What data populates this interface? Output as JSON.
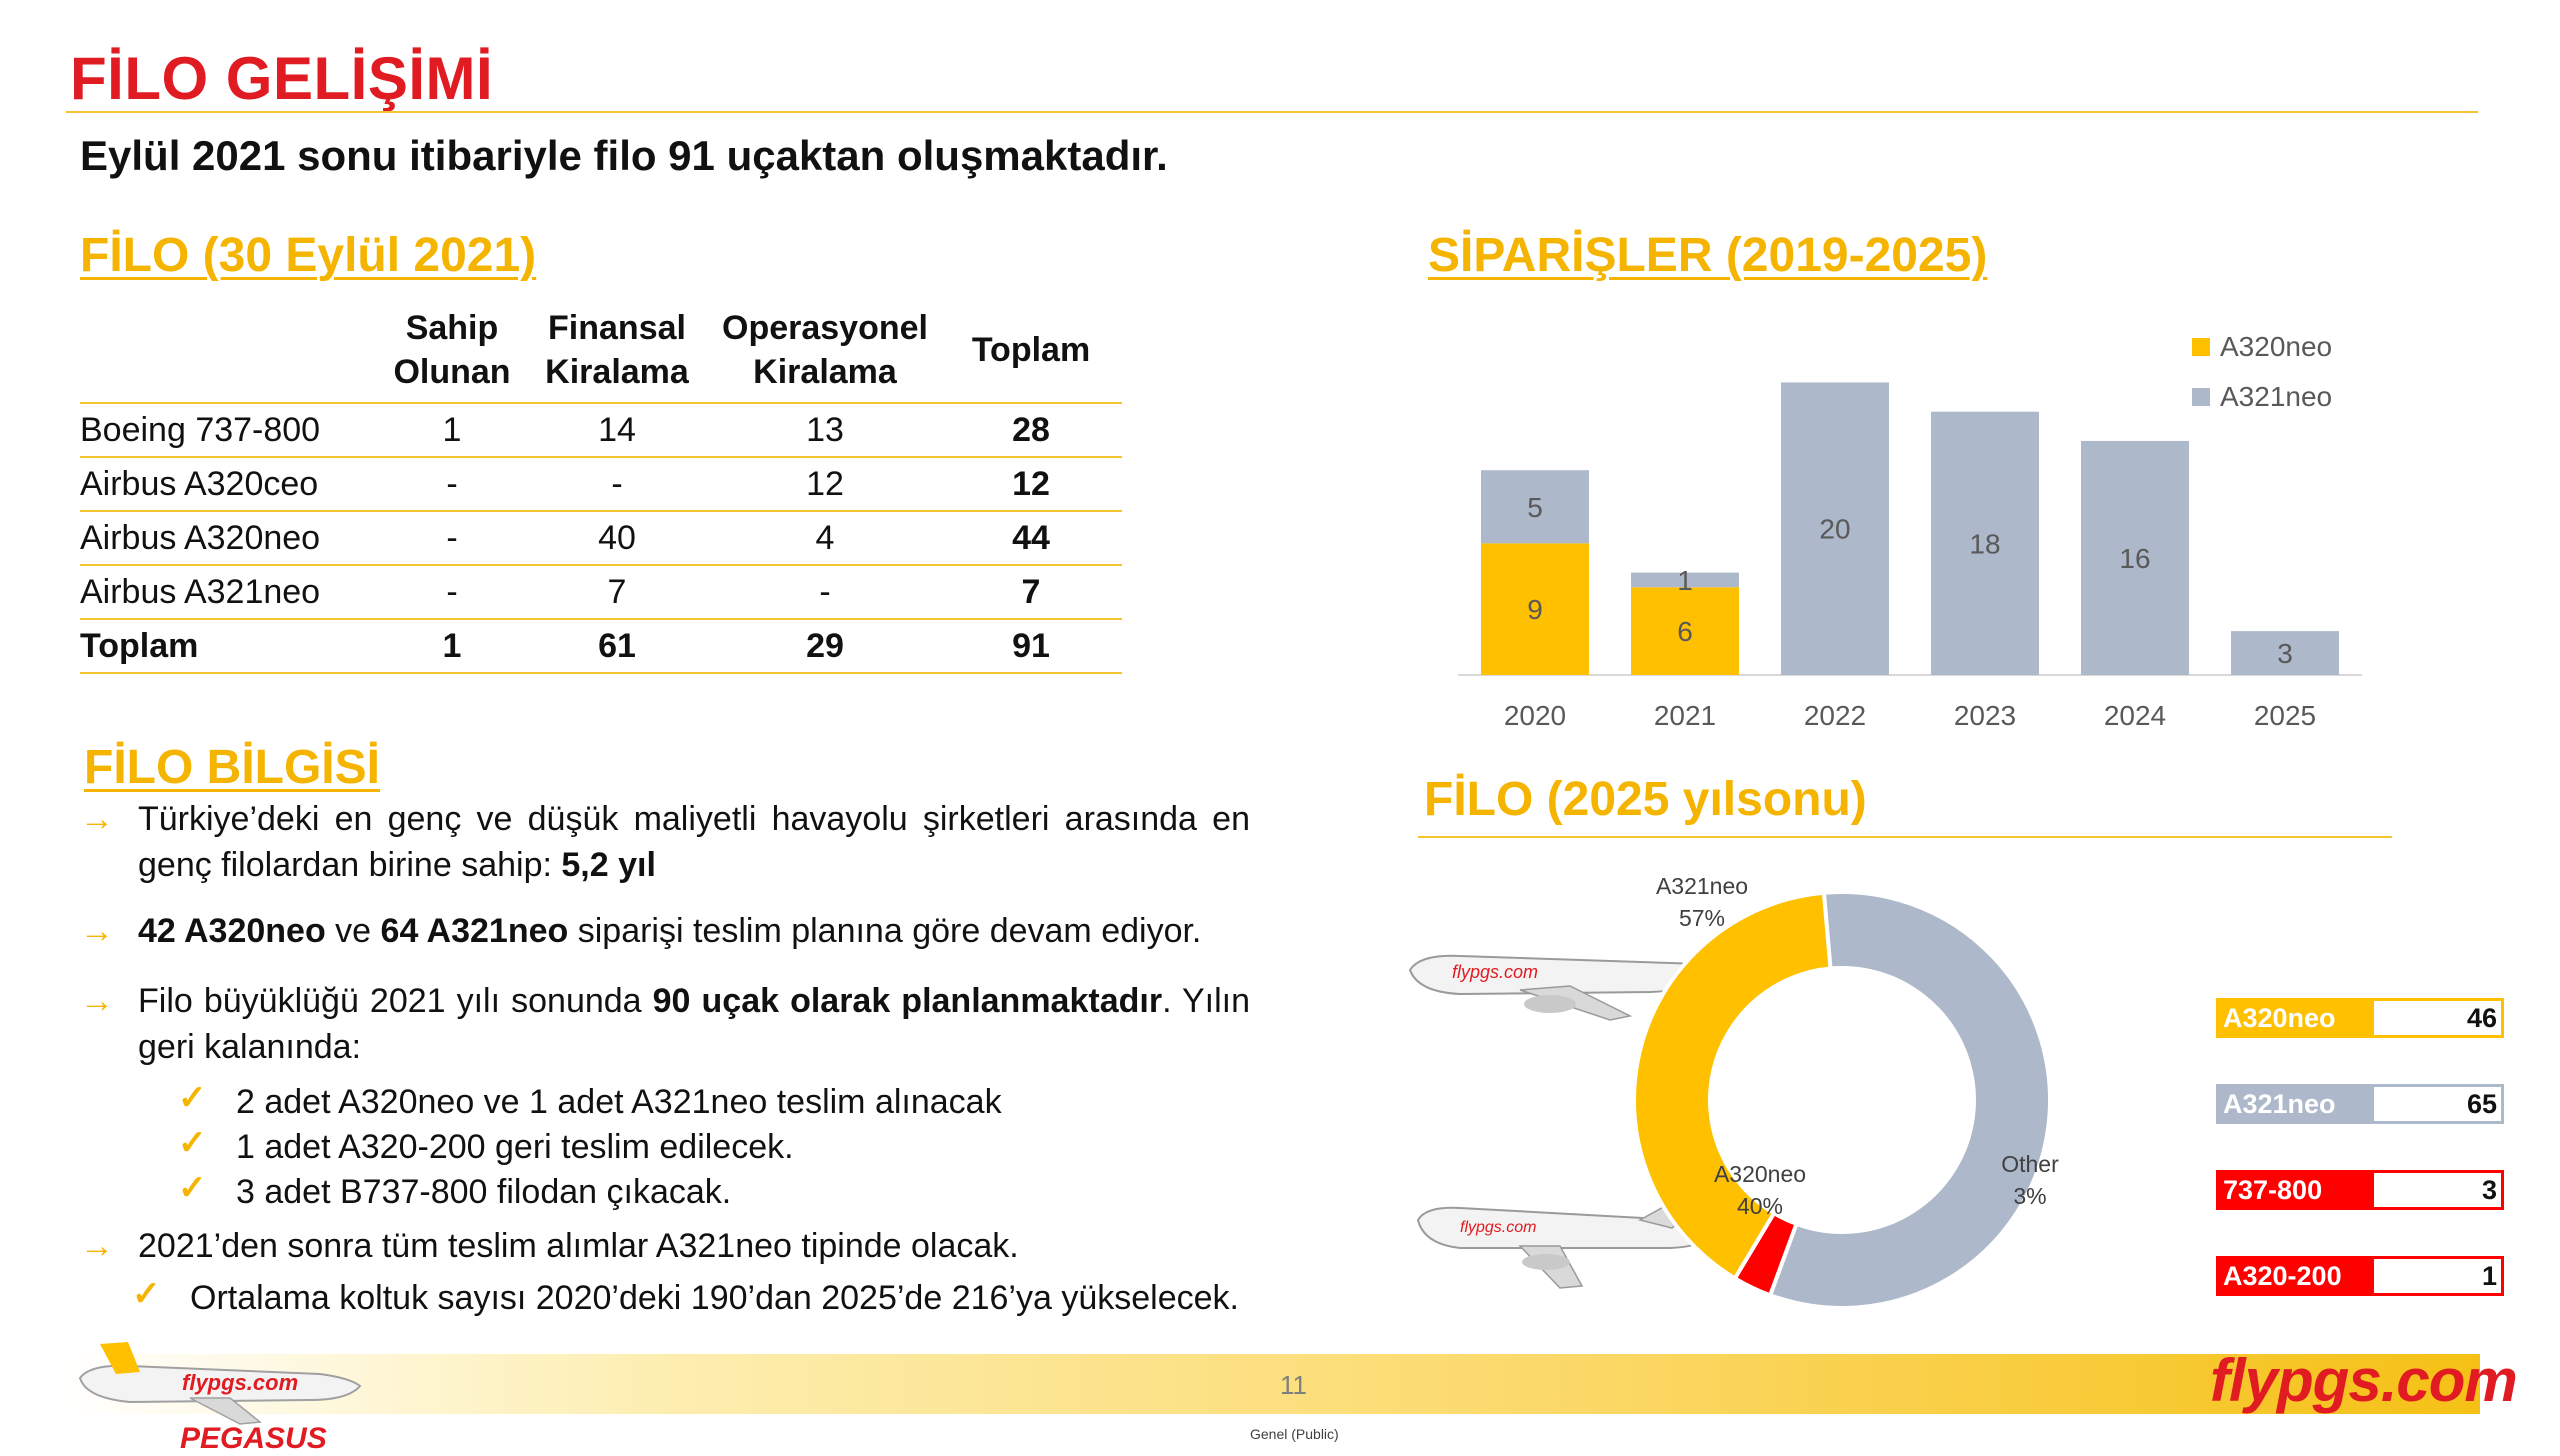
{
  "page": {
    "title": "FİLO GELİŞİMİ",
    "subtitle": "Eylül 2021 sonu itibariyle filo 91 uçaktan oluşmaktadır.",
    "page_number": "11",
    "footnote": "Genel (Public)",
    "brand_right": "flypgs.com",
    "brand_left": "PEGASUS",
    "colors": {
      "title_red": "#e01b22",
      "accent_yellow": "#f4b400",
      "grey_bar": "#adb8ca"
    }
  },
  "fleet_table": {
    "heading": "FİLO (30 Eylül 2021)",
    "columns": [
      {
        "line1": "Sahip",
        "line2": "Olunan"
      },
      {
        "line1": "Finansal",
        "line2": "Kiralama"
      },
      {
        "line1": "Operasyonel",
        "line2": "Kiralama"
      },
      {
        "line1": "Toplam",
        "line2": ""
      }
    ],
    "rows": [
      {
        "label": "Boeing 737-800",
        "v": [
          "1",
          "14",
          "13",
          "28"
        ]
      },
      {
        "label": "Airbus A320ceo",
        "v": [
          "-",
          "-",
          "12",
          "12"
        ]
      },
      {
        "label": "Airbus A320neo",
        "v": [
          "-",
          "40",
          "4",
          "44"
        ]
      },
      {
        "label": "Airbus A321neo",
        "v": [
          "-",
          "7",
          "-",
          "7"
        ]
      },
      {
        "label": "Toplam",
        "v": [
          "1",
          "61",
          "29",
          "91"
        ]
      }
    ]
  },
  "info": {
    "heading": "FİLO BİLGİSİ",
    "b1_text": "Türkiye’deki en genç ve düşük maliyetli havayolu şirketleri arasında en genç filolardan birine sahip: ",
    "b1_bold": "5,2 yıl",
    "b2_bold1": "42 A320neo",
    "b2_mid": " ve ",
    "b2_bold2": "64 A321neo",
    "b2_text": " siparişi teslim planına göre devam ediyor.",
    "b3_text": "Filo büyüklüğü 2021 yılı sonunda ",
    "b3_bold": "90 uçak olarak planlanmaktadır",
    "b3_rest": ". Yılın geri kalanında:",
    "sub1": "2 adet A320neo ve 1 adet A321neo teslim alınacak",
    "sub2": "1 adet A320-200 geri teslim edilecek.",
    "sub3": "3 adet B737-800 filodan çıkacak.",
    "b4_text": "2021’den sonra tüm teslim alımlar A321neo tipinde olacak.",
    "sub4": "Ortalama koltuk sayısı 2020’deki 190’dan 2025’de 216’ya yükselecek.",
    "arrow": "→",
    "check": "✓"
  },
  "orders_heading": "SİPARİŞLER (2019-2025)",
  "fleet2025_heading": "FİLO (2025 yılsonu)",
  "pie_boxes": [
    {
      "label": "A320neo",
      "value": "46",
      "color": "#ffc000"
    },
    {
      "label": "A321neo",
      "value": "65",
      "color": "#adb8ca"
    },
    {
      "label": "737-800",
      "value": "3",
      "color": "#ff0000"
    },
    {
      "label": "A320-200",
      "value": "1",
      "color": "#ff0000"
    }
  ],
  "chart_data": [
    {
      "type": "bar",
      "stacked": true,
      "categories": [
        "2020",
        "2021",
        "2022",
        "2023",
        "2024",
        "2025"
      ],
      "series": [
        {
          "name": "A320neo",
          "values": [
            9,
            6,
            0,
            0,
            0,
            0
          ],
          "color": "#ffc000"
        },
        {
          "name": "A321neo",
          "values": [
            5,
            1,
            20,
            18,
            16,
            3
          ],
          "color": "#adb8ca"
        }
      ],
      "ylim": [
        0,
        20
      ],
      "legend": "top-right",
      "grid": false
    },
    {
      "type": "pie",
      "donut": true,
      "slices": [
        {
          "name": "A321neo",
          "pct_label": "57%",
          "value": 57,
          "color": "#adb8ca"
        },
        {
          "name": "Other",
          "pct_label": "3%",
          "value": 3,
          "color": "#ff0000"
        },
        {
          "name": "A320neo",
          "pct_label": "40%",
          "value": 40,
          "color": "#ffc000"
        }
      ]
    }
  ]
}
